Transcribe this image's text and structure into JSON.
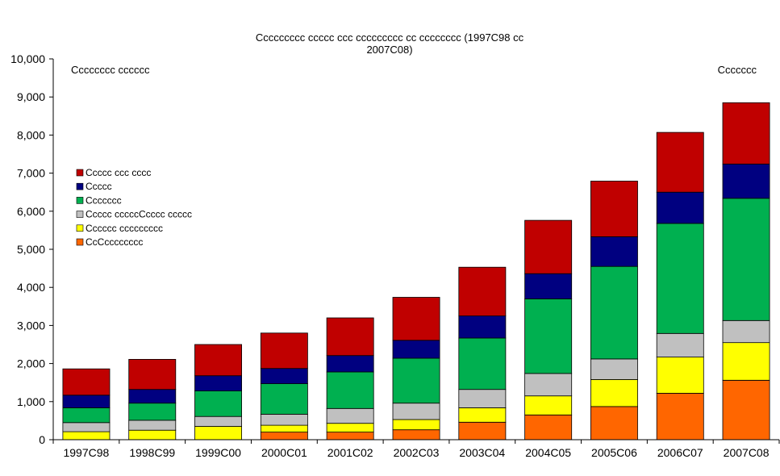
{
  "chart_data": {
    "type": "bar",
    "stacked": true,
    "title_line1": "Ccccccccc ccccc ccc ccccccccc cc cccccccc (1997C98 cc",
    "title_line2": "2007C08)",
    "corner_label_left": "Cccccccc cccccc",
    "corner_label_right": "Ccccccc",
    "categories": [
      "1997C98",
      "1998C99",
      "1999C00",
      "2000C01",
      "2001C02",
      "2002C03",
      "2003C04",
      "2004C05",
      "2005C06",
      "2006C07",
      "2007C08"
    ],
    "ylim": [
      0,
      10000
    ],
    "yticks": [
      "0",
      "1,000",
      "2,000",
      "3,000",
      "4,000",
      "5,000",
      "6,000",
      "7,000",
      "8,000",
      "9,000",
      "10,000"
    ],
    "grid": false,
    "legend_position": "left",
    "series": [
      {
        "name": "CcCcccccccc",
        "color": "#ff6600",
        "values": [
          0,
          0,
          0,
          200,
          200,
          260,
          460,
          650,
          870,
          1220,
          1560
        ]
      },
      {
        "name": "Cccccc ccccccccc",
        "color": "#ffff00",
        "values": [
          210,
          250,
          350,
          180,
          230,
          270,
          380,
          500,
          710,
          950,
          990
        ]
      },
      {
        "name": "Ccccc cccccCccccc ccccc",
        "color": "#c0c0c0",
        "values": [
          240,
          260,
          260,
          290,
          390,
          430,
          480,
          590,
          540,
          620,
          580
        ]
      },
      {
        "name": "Ccccccc",
        "color": "#00b050",
        "values": [
          390,
          450,
          670,
          800,
          960,
          1180,
          1350,
          1960,
          2430,
          2890,
          3210
        ]
      },
      {
        "name": "Ccccc",
        "color": "#000080",
        "values": [
          330,
          360,
          400,
          400,
          430,
          470,
          580,
          660,
          780,
          820,
          900
        ]
      },
      {
        "name": "Ccccc ccc cccc",
        "color": "#c00000",
        "values": [
          690,
          790,
          820,
          930,
          990,
          1130,
          1280,
          1400,
          1460,
          1570,
          1610
        ]
      }
    ],
    "legend_order": [
      "Ccccc ccc cccc",
      "Ccccc",
      "Ccccccc",
      "Ccccc cccccCcccc ccccc",
      "Cccccc ccccccccc",
      "CcCcccccccc"
    ]
  }
}
